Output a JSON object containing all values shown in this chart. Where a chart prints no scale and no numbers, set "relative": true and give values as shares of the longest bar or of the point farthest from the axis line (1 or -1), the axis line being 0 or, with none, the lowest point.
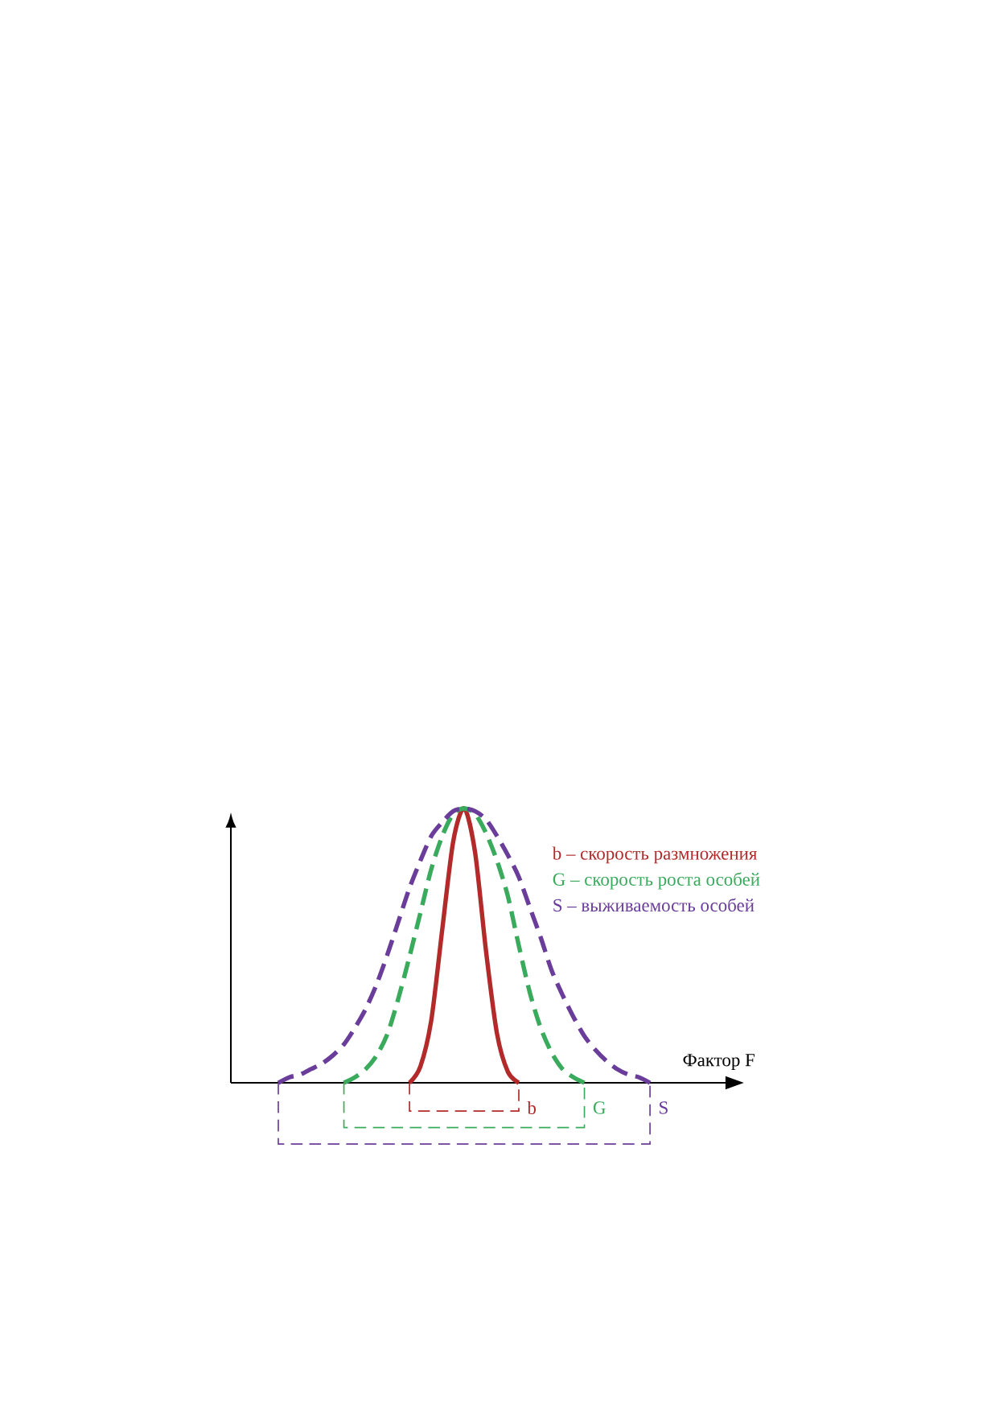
{
  "chart_data": {
    "type": "line",
    "xlabel": "Фактор F",
    "relative": true,
    "legend": "top right",
    "categories": [
      null,
      null,
      null,
      null,
      null,
      null,
      null,
      null,
      null,
      null,
      null,
      null,
      null,
      null,
      null,
      null,
      null,
      null,
      null,
      null,
      null,
      null,
      null,
      null,
      null,
      null,
      null,
      null,
      null,
      null,
      null,
      null,
      null,
      null,
      null
    ],
    "series": [
      {
        "name": "b – скорость размножения",
        "color": "#b22a2a",
        "line_style": "solid",
        "values": [
          null,
          null,
          null,
          null,
          null,
          null,
          null,
          null,
          null,
          null,
          null,
          null,
          0,
          0.06,
          0.23,
          0.56,
          0.88,
          1,
          0.84,
          0.48,
          0.18,
          0.04,
          0,
          null,
          null,
          null,
          null,
          null,
          null,
          null,
          null,
          null,
          null,
          null,
          null
        ]
      },
      {
        "name": "G – скорость роста особей",
        "color": "#3aaa5c",
        "line_style": "dashed",
        "values": [
          null,
          null,
          null,
          null,
          null,
          null,
          0,
          0.02,
          0.05,
          0.1,
          0.18,
          0.31,
          0.46,
          0.62,
          0.78,
          0.9,
          0.98,
          1,
          0.98,
          0.91,
          0.81,
          0.68,
          0.5,
          0.33,
          0.2,
          0.11,
          0.05,
          0.02,
          0,
          null,
          null,
          null,
          null,
          null,
          null
        ]
      },
      {
        "name": "S – выживаемость особей",
        "color": "#6a3d9a",
        "line_style": "dashed",
        "values": [
          0,
          0.02,
          0.03,
          0.05,
          0.07,
          0.1,
          0.14,
          0.2,
          0.27,
          0.36,
          0.47,
          0.59,
          0.71,
          0.81,
          0.9,
          0.95,
          0.99,
          1,
          0.99,
          0.96,
          0.9,
          0.83,
          0.75,
          0.64,
          0.53,
          0.41,
          0.32,
          0.24,
          0.17,
          0.12,
          0.08,
          0.05,
          0.03,
          0.02,
          0
        ]
      }
    ],
    "annotations": [
      "b",
      "G",
      "S"
    ]
  }
}
